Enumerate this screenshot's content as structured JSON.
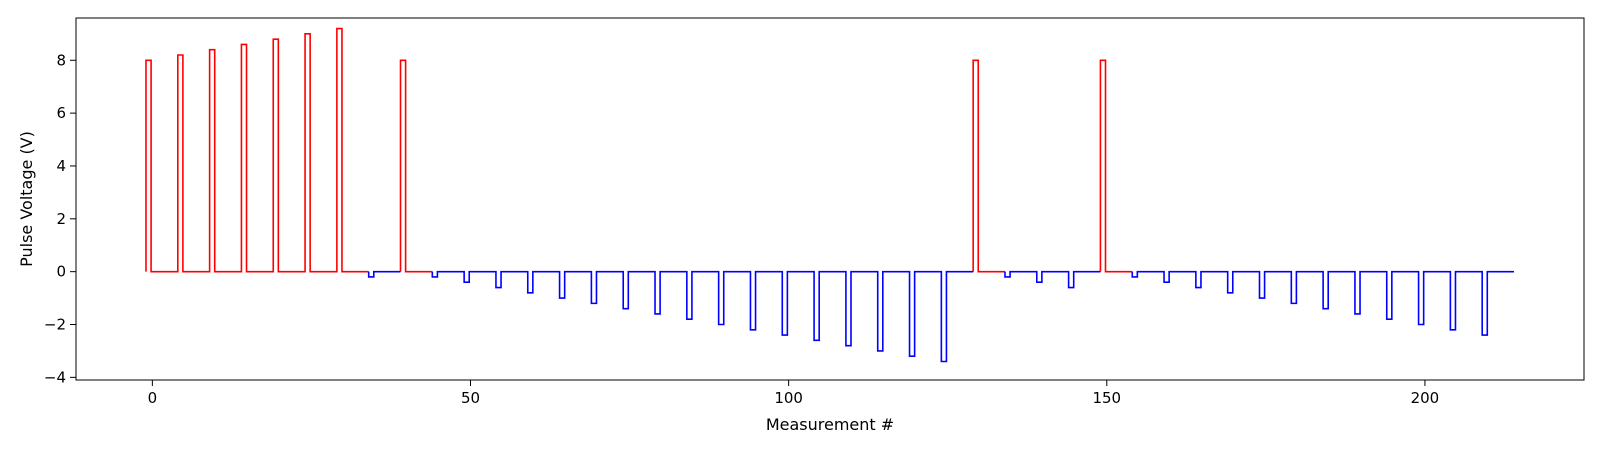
{
  "chart_data": {
    "type": "line",
    "title": "",
    "xlabel": "Measurement #",
    "ylabel": "Pulse Voltage (V)",
    "xlim": [
      -12,
      225
    ],
    "ylim": [
      -4.1,
      9.6
    ],
    "xticks": [
      0,
      50,
      100,
      150,
      200
    ],
    "yticks": [
      -4,
      -2,
      0,
      2,
      4,
      6,
      8
    ],
    "xtick_labels": [
      "0",
      "50",
      "100",
      "150",
      "200"
    ],
    "ytick_labels": [
      "−4",
      "−2",
      "0",
      "2",
      "4",
      "6",
      "8"
    ],
    "grid": false,
    "legend": "none",
    "step_style": "pulse",
    "pulse_width": 0.8,
    "baseline": 0,
    "series": [
      {
        "color": "#ff0000",
        "segments": [
          {
            "x_start": -1,
            "x_end": 34,
            "pulses": [
              {
                "x": -1,
                "y": 8.0
              },
              {
                "x": 4,
                "y": 8.2
              },
              {
                "x": 9,
                "y": 8.4
              },
              {
                "x": 14,
                "y": 8.6
              },
              {
                "x": 19,
                "y": 8.8
              },
              {
                "x": 24,
                "y": 9.0
              },
              {
                "x": 29,
                "y": 9.2
              }
            ]
          },
          {
            "x_start": 39,
            "x_end": 44,
            "pulses": [
              {
                "x": 39,
                "y": 8.0
              }
            ]
          },
          {
            "x_start": 129,
            "x_end": 134,
            "pulses": [
              {
                "x": 129,
                "y": 8.0
              }
            ]
          },
          {
            "x_start": 149,
            "x_end": 154,
            "pulses": [
              {
                "x": 149,
                "y": 8.0
              }
            ]
          }
        ]
      },
      {
        "color": "#0000ff",
        "segments": [
          {
            "x_start": 34,
            "x_end": 39,
            "pulses": [
              {
                "x": 34,
                "y": -0.2
              }
            ]
          },
          {
            "x_start": 44,
            "x_end": 129,
            "pulses": [
              {
                "x": 44,
                "y": -0.2
              },
              {
                "x": 49,
                "y": -0.4
              },
              {
                "x": 54,
                "y": -0.6
              },
              {
                "x": 59,
                "y": -0.8
              },
              {
                "x": 64,
                "y": -1.0
              },
              {
                "x": 69,
                "y": -1.2
              },
              {
                "x": 74,
                "y": -1.4
              },
              {
                "x": 79,
                "y": -1.6
              },
              {
                "x": 84,
                "y": -1.8
              },
              {
                "x": 89,
                "y": -2.0
              },
              {
                "x": 94,
                "y": -2.2
              },
              {
                "x": 99,
                "y": -2.4
              },
              {
                "x": 104,
                "y": -2.6
              },
              {
                "x": 109,
                "y": -2.8
              },
              {
                "x": 114,
                "y": -3.0
              },
              {
                "x": 119,
                "y": -3.2
              },
              {
                "x": 124,
                "y": -3.4
              }
            ]
          },
          {
            "x_start": 134,
            "x_end": 149,
            "pulses": [
              {
                "x": 134,
                "y": -0.2
              },
              {
                "x": 139,
                "y": -0.4
              },
              {
                "x": 144,
                "y": -0.6
              }
            ]
          },
          {
            "x_start": 154,
            "x_end": 214,
            "pulses": [
              {
                "x": 154,
                "y": -0.2
              },
              {
                "x": 159,
                "y": -0.4
              },
              {
                "x": 164,
                "y": -0.6
              },
              {
                "x": 169,
                "y": -0.8
              },
              {
                "x": 174,
                "y": -1.0
              },
              {
                "x": 179,
                "y": -1.2
              },
              {
                "x": 184,
                "y": -1.4
              },
              {
                "x": 189,
                "y": -1.6
              },
              {
                "x": 194,
                "y": -1.8
              },
              {
                "x": 199,
                "y": -2.0
              },
              {
                "x": 204,
                "y": -2.2
              },
              {
                "x": 209,
                "y": -2.4
              }
            ]
          }
        ]
      }
    ]
  }
}
